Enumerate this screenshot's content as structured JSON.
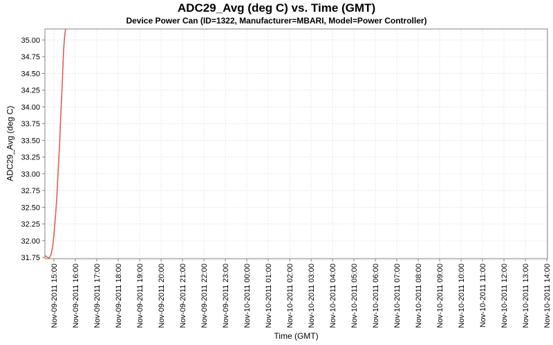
{
  "chart_data": {
    "type": "line",
    "title": "ADC29_Avg (deg C) vs. Time (GMT)",
    "subtitle": "Device Power Can (ID=1322, Manufacturer=MBARI, Model=Power Controller)",
    "xlabel": "Time (GMT)",
    "ylabel": "ADC29_Avg (deg C)",
    "legend": "none",
    "grid": "dotted",
    "colors": {
      "line": "#e05c5c",
      "grid": "#d9d9d9",
      "border": "#808080",
      "tick": "#808080",
      "text": "#000000"
    },
    "x_axis": {
      "tick_labels": [
        "Nov-09-2011 15:00",
        "Nov-09-2011 16:00",
        "Nov-09-2011 17:00",
        "Nov-09-2011 18:00",
        "Nov-09-2011 19:00",
        "Nov-09-2011 20:00",
        "Nov-09-2011 21:00",
        "Nov-09-2011 22:00",
        "Nov-09-2011 23:00",
        "Nov-10-2011 00:00",
        "Nov-10-2011 01:00",
        "Nov-10-2011 02:00",
        "Nov-10-2011 03:00",
        "Nov-10-2011 04:00",
        "Nov-10-2011 05:00",
        "Nov-10-2011 06:00",
        "Nov-10-2011 07:00",
        "Nov-10-2011 08:00",
        "Nov-10-2011 09:00",
        "Nov-10-2011 10:00",
        "Nov-10-2011 11:00",
        "Nov-10-2011 12:00",
        "Nov-10-2011 13:00",
        "Nov-10-2011 14:00"
      ],
      "range_hours": [
        -0.42,
        23.03
      ]
    },
    "y_axis": {
      "tick_labels": [
        "31.75",
        "32.00",
        "32.25",
        "32.50",
        "32.75",
        "33.00",
        "33.25",
        "33.50",
        "33.75",
        "34.00",
        "34.25",
        "34.50",
        "34.75",
        "35.00"
      ],
      "range": [
        31.73,
        35.165
      ]
    },
    "series": [
      {
        "name": "ADC29_Avg",
        "color": "#e05c5c",
        "points": [
          [
            -0.42,
            31.78
          ],
          [
            -0.3,
            31.75
          ],
          [
            -0.22,
            31.74
          ],
          [
            -0.13,
            31.8
          ],
          [
            -0.06,
            31.91
          ],
          [
            0.0,
            32.09
          ],
          [
            0.06,
            32.32
          ],
          [
            0.13,
            32.63
          ],
          [
            0.19,
            33.0
          ],
          [
            0.26,
            33.41
          ],
          [
            0.32,
            33.87
          ],
          [
            0.39,
            34.36
          ],
          [
            0.45,
            34.85
          ],
          [
            0.5,
            35.05
          ],
          [
            0.57,
            35.25
          ]
        ]
      }
    ]
  }
}
